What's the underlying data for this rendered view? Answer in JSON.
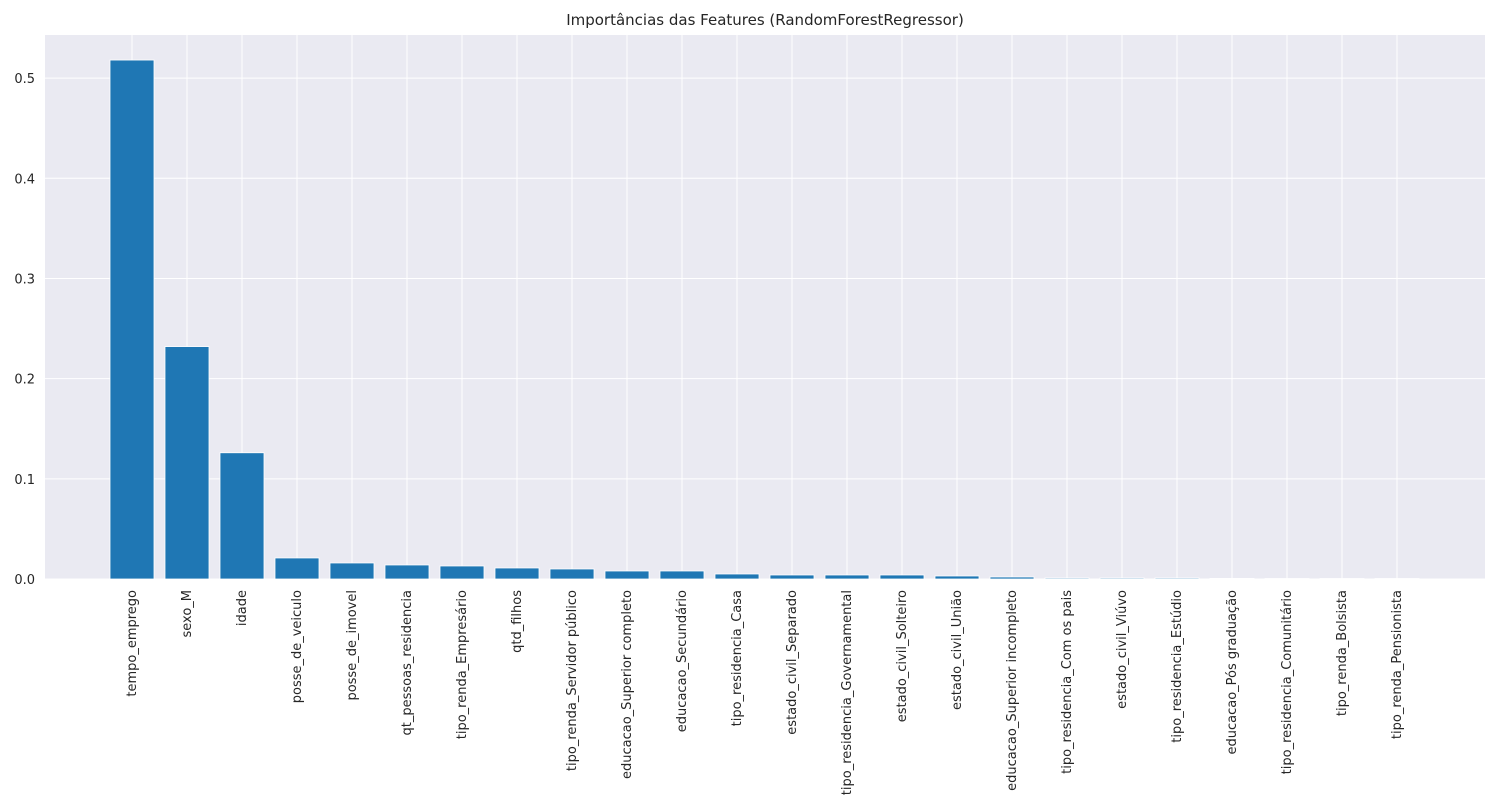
{
  "chart_data": {
    "type": "bar",
    "title": "Importâncias das Features (RandomForestRegressor)",
    "xlabel": "",
    "ylabel": "",
    "categories": [
      "tempo_emprego",
      "sexo_M",
      "idade",
      "posse_de_veiculo",
      "posse_de_imovel",
      "qt_pessoas_residencia",
      "tipo_renda_Empresário",
      "qtd_filhos",
      "tipo_renda_Servidor público",
      "educacao_Superior completo",
      "educacao_Secundário",
      "tipo_residencia_Casa",
      "estado_civil_Separado",
      "tipo_residencia_Governamental",
      "estado_civil_Solteiro",
      "estado_civil_União",
      "educacao_Superior incompleto",
      "tipo_residencia_Com os pais",
      "estado_civil_Viúvo",
      "tipo_residencia_Estúdio",
      "educacao_Pós graduação",
      "tipo_residencia_Comunitário",
      "tipo_renda_Bolsista",
      "tipo_renda_Pensionista"
    ],
    "values": [
      0.518,
      0.232,
      0.126,
      0.021,
      0.016,
      0.014,
      0.013,
      0.011,
      0.01,
      0.008,
      0.008,
      0.005,
      0.004,
      0.004,
      0.004,
      0.003,
      0.002,
      0.001,
      0.001,
      0.001,
      0.0006,
      0.0004,
      0.0002,
      0.0001
    ],
    "yticks": [
      0.0,
      0.1,
      0.2,
      0.3,
      0.4,
      0.5
    ],
    "ytick_labels": [
      "0.0",
      "0.1",
      "0.2",
      "0.3",
      "0.4",
      "0.5"
    ],
    "ylim": [
      0,
      0.543
    ],
    "grid": true,
    "colors": {
      "bar": "#1f77b4",
      "background": "#eaeaf2",
      "grid": "#ffffff"
    }
  }
}
